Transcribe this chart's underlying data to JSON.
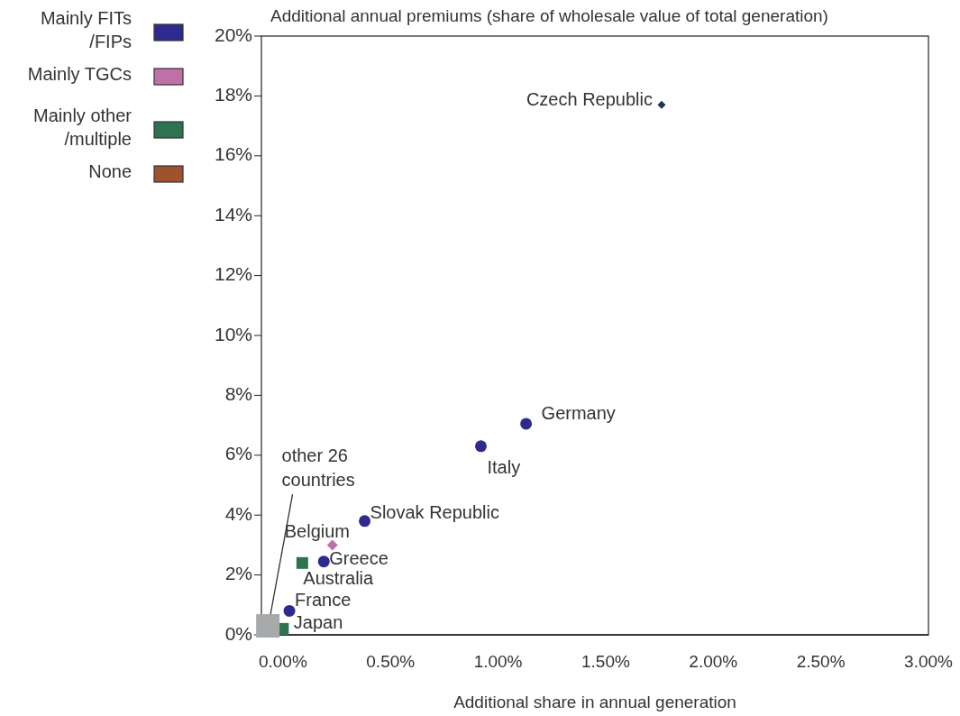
{
  "chart_data": {
    "type": "scatter",
    "ylabel": "Additional annual premiums (share of wholesale value of total generation)",
    "xlabel": "Additional share in annual generation",
    "xlim": [
      -0.1,
      3.0
    ],
    "ylim": [
      0,
      20
    ],
    "xticks": [
      {
        "value": 0,
        "label": "0.00%"
      },
      {
        "value": 0.5,
        "label": "0.50%"
      },
      {
        "value": 1,
        "label": "1.00%"
      },
      {
        "value": 1.5,
        "label": "1.50%"
      },
      {
        "value": 2,
        "label": "2.00%"
      },
      {
        "value": 2.5,
        "label": "2.50%"
      },
      {
        "value": 3,
        "label": "3.00%"
      }
    ],
    "yticks": [
      {
        "value": 0,
        "label": "0%"
      },
      {
        "value": 2,
        "label": "2%"
      },
      {
        "value": 4,
        "label": "4%"
      },
      {
        "value": 6,
        "label": "6%"
      },
      {
        "value": 8,
        "label": "8%"
      },
      {
        "value": 10,
        "label": "10%"
      },
      {
        "value": 12,
        "label": "12%"
      },
      {
        "value": 14,
        "label": "14%"
      },
      {
        "value": 16,
        "label": "16%"
      },
      {
        "value": 18,
        "label": "18%"
      },
      {
        "value": 20,
        "label": "20%"
      }
    ],
    "legend": "left",
    "grid": false,
    "series": [
      {
        "name": "Mainly FITs\n/FIPs",
        "color": "#2e2a90",
        "marker": "circle",
        "x": [
          1.13,
          0.92,
          0.38,
          0.19,
          0.03
        ],
        "values": [
          7.05,
          6.3,
          3.8,
          2.45,
          0.8
        ]
      },
      {
        "name": "Mainly TGCs",
        "color": "#c070a8",
        "marker": "diamond",
        "x": [
          0.23
        ],
        "values": [
          3.0
        ]
      },
      {
        "name": "Mainly other\n/multiple",
        "color": "#2e7350",
        "marker": "square",
        "x": [
          0.09,
          0.0
        ],
        "values": [
          2.4,
          0.2
        ]
      },
      {
        "name": "None",
        "color": "#a0522d"
      },
      {
        "color": "#1c3558",
        "marker": "diamond",
        "x": [
          1.76
        ],
        "values": [
          17.7
        ]
      },
      {
        "color": "#a8a9ab",
        "marker": "square",
        "x": [
          -0.07
        ],
        "values": [
          0.3
        ]
      }
    ],
    "annotations": [
      {
        "text": "Czech Republic",
        "x": 1.76,
        "y": 17.7
      },
      {
        "text": "Germany",
        "x": 1.13,
        "y": 7.05
      },
      {
        "text": "Italy",
        "x": 0.92,
        "y": 6.3
      },
      {
        "text": "Slovak Republic",
        "x": 0.38,
        "y": 3.8
      },
      {
        "text": "Belgium",
        "x": 0.23,
        "y": 3.0
      },
      {
        "text": "Greece",
        "x": 0.19,
        "y": 2.45
      },
      {
        "text": "Australia",
        "x": 0.09,
        "y": 2.4
      },
      {
        "text": "France",
        "x": 0.03,
        "y": 0.8
      },
      {
        "text": "Japan",
        "x": 0.0,
        "y": 0.2
      },
      {
        "text": "other 26\ncountries",
        "x": -0.06,
        "y": 0.6
      }
    ]
  }
}
